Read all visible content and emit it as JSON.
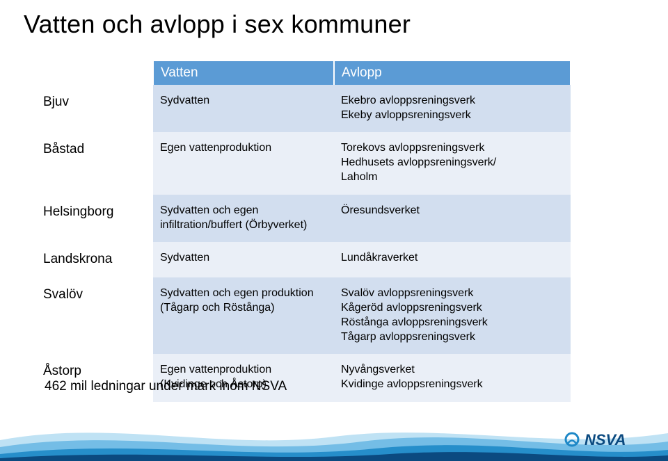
{
  "title": "Vatten och avlopp i sex kommuner",
  "table": {
    "headers": {
      "h0": "",
      "h1": "Vatten",
      "h2": "Avlopp"
    },
    "header_bg": "#5b9bd5",
    "header_fg": "#ffffff",
    "shade_bg": "#d2deef",
    "light_bg": "#eaeff7",
    "rows": [
      {
        "label": "Bjuv",
        "c1": "Sydvatten",
        "c2": "Ekebro avloppsreningsverk\nEkeby avloppsreningsverk"
      },
      {
        "label": "Båstad",
        "c1": "Egen vattenproduktion",
        "c2": "Torekovs avloppsreningsverk\nHedhusets avloppsreningsverk/\nLaholm"
      },
      {
        "label": "Helsingborg",
        "c1": "Sydvatten och egen\ninfiltration/buffert (Örbyverket)",
        "c2": "Öresundsverket"
      },
      {
        "label": "Landskrona",
        "c1": "Sydvatten",
        "c2": "Lundåkraverket"
      },
      {
        "label": "Svalöv",
        "c1": "Sydvatten och egen produktion\n(Tågarp och Röstånga)",
        "c2": "Svalöv avloppsreningsverk\nKågeröd avloppsreningsverk\nRöstånga avloppsreningsverk\nTågarp avloppsreningsverk"
      },
      {
        "label": "Åstorp",
        "c1": "Egen vattenproduktion\n(Kvidinge och Åstorp)",
        "c2": "Nyvångsverket\nKvidinge avloppsreningsverk"
      }
    ]
  },
  "footnote": "462 mil ledningar under mark inom NSVA",
  "logo_text": "NSVA",
  "colors": {
    "wave1": "#bfe2f4",
    "wave2": "#6cb9e4",
    "wave3": "#1e88c7",
    "wave4": "#0b4a80",
    "logo_dark": "#0b4a80",
    "logo_accent": "#1e88c7"
  }
}
